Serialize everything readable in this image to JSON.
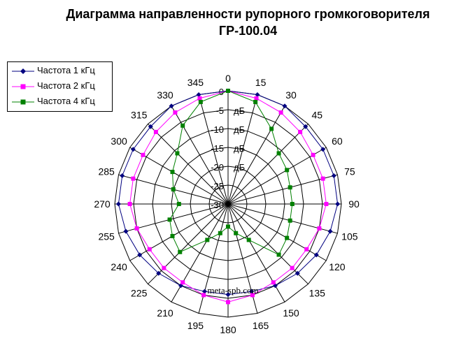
{
  "chart_data": {
    "type": "polar-line",
    "title": "Диаграмма направленности рупорного громкоговорителя",
    "subtitle": "ГР-100.04",
    "angles": [
      0,
      15,
      30,
      45,
      60,
      75,
      90,
      105,
      120,
      135,
      150,
      165,
      180,
      195,
      210,
      225,
      240,
      255,
      270,
      285,
      300,
      315,
      330,
      345
    ],
    "radial_tick_labels": [
      "0",
      "-5",
      "-10",
      "-15",
      "-20",
      "-25",
      "-30"
    ],
    "radial_unit_labels": [
      "дБ",
      "дБ",
      "дБ",
      "дБ"
    ],
    "rlim": [
      -30,
      0
    ],
    "grid": true,
    "legend_position": "top-left",
    "watermark": "meta-spb.com",
    "series": [
      {
        "name": "Частота 1 кГц",
        "color": "#000080",
        "marker": "diamond",
        "values": [
          0,
          0,
          0,
          -1,
          -1,
          -1,
          -1,
          -2,
          -3,
          -4,
          -5,
          -6,
          -6,
          -6,
          -5,
          -4,
          -3,
          -2,
          -1,
          -1,
          -1,
          -1,
          0,
          0
        ]
      },
      {
        "name": "Частота 2 кГц",
        "color": "#ff00ff",
        "marker": "square",
        "values": [
          0,
          -1,
          -2,
          -3,
          -4,
          -4,
          -4,
          -5,
          -6,
          -6,
          -6,
          -5,
          -4,
          -5,
          -6,
          -6,
          -6,
          -5,
          -4,
          -4,
          -4,
          -3,
          -2,
          -1
        ]
      },
      {
        "name": "Частота 4 кГц",
        "color": "#008000",
        "marker": "square",
        "values": [
          0,
          -2,
          -7,
          -11,
          -12,
          -13,
          -13,
          -13,
          -12,
          -11,
          -19,
          -22,
          -24,
          -22,
          -19,
          -12,
          -13,
          -14,
          -17,
          -15,
          -13,
          -11,
          -6,
          -2
        ]
      }
    ]
  }
}
